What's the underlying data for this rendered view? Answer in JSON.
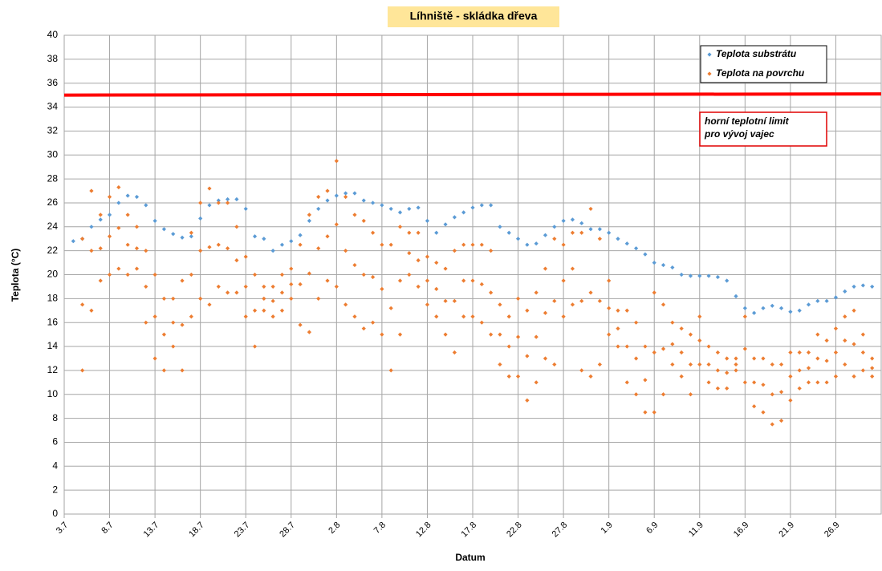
{
  "chart_data": {
    "type": "scatter",
    "title": "Líhniště - skládka dřeva",
    "x_label": "Datum",
    "y_label": "Teplota (°C)",
    "xlim": [
      0,
      90
    ],
    "ylim": [
      0,
      40
    ],
    "xticks": [
      {
        "value": 0,
        "label": "3.7"
      },
      {
        "value": 5,
        "label": "8.7"
      },
      {
        "value": 10,
        "label": "13.7"
      },
      {
        "value": 15,
        "label": "18.7"
      },
      {
        "value": 20,
        "label": "23.7"
      },
      {
        "value": 25,
        "label": "28.7"
      },
      {
        "value": 30,
        "label": "2.8"
      },
      {
        "value": 35,
        "label": "7.8"
      },
      {
        "value": 40,
        "label": "12.8"
      },
      {
        "value": 45,
        "label": "17.8"
      },
      {
        "value": 50,
        "label": "22.8"
      },
      {
        "value": 55,
        "label": "27.8"
      },
      {
        "value": 60,
        "label": "1.9"
      },
      {
        "value": 65,
        "label": "6.9"
      },
      {
        "value": 70,
        "label": "11.9"
      },
      {
        "value": 75,
        "label": "16.9"
      },
      {
        "value": 80,
        "label": "21.9"
      },
      {
        "value": 85,
        "label": "26.9"
      }
    ],
    "yticks": [
      0,
      2,
      4,
      6,
      8,
      10,
      12,
      14,
      16,
      18,
      20,
      22,
      24,
      26,
      28,
      30,
      32,
      34,
      36,
      38,
      40
    ],
    "grid": true,
    "legend": "top-right",
    "annotation": [
      "horní teplotní limit",
      "pro vývoj  vajec"
    ],
    "limit_line": {
      "color": "#ff0000",
      "x": [
        0,
        90
      ],
      "values": [
        35,
        35.1
      ]
    },
    "series": [
      {
        "name": "Teplota substrátu",
        "color": "#5b9bd5",
        "x": [
          1,
          2,
          3,
          4,
          5,
          6,
          7,
          8,
          9,
          10,
          11,
          12,
          13,
          14,
          15,
          16,
          17,
          18,
          19,
          20,
          21,
          22,
          23,
          24,
          25,
          26,
          27,
          28,
          29,
          30,
          31,
          32,
          33,
          34,
          35,
          36,
          37,
          38,
          39,
          40,
          41,
          42,
          43,
          44,
          45,
          46,
          47,
          48,
          49,
          50,
          51,
          52,
          53,
          54,
          55,
          56,
          57,
          58,
          59,
          60,
          61,
          62,
          63,
          64,
          65,
          66,
          67,
          68,
          69,
          70,
          71,
          72,
          73,
          74,
          75,
          76,
          77,
          78,
          79,
          80,
          81,
          82,
          83,
          84,
          85,
          86,
          87,
          88,
          89
        ],
        "values": [
          22.8,
          23,
          24,
          24.6,
          25,
          26,
          26.6,
          26.5,
          25.8,
          24.5,
          23.8,
          23.4,
          23.1,
          23.2,
          24.7,
          25.8,
          26.2,
          26.3,
          26.3,
          25.5,
          23.2,
          23,
          22,
          22.5,
          22.8,
          23.3,
          24.5,
          25.5,
          26.2,
          26.6,
          26.8,
          26.8,
          26.2,
          26,
          25.8,
          25.5,
          25.2,
          25.5,
          25.6,
          24.5,
          23.5,
          24.2,
          24.8,
          25.2,
          25.6,
          25.8,
          25.8,
          24,
          23.5,
          23,
          22.5,
          22.6,
          23.3,
          24,
          24.5,
          24.6,
          24.3,
          23.8,
          23.8,
          23.5,
          23,
          22.6,
          22.2,
          21.7,
          21,
          20.8,
          20.6,
          20,
          19.9,
          19.9,
          19.9,
          19.8,
          19.5,
          18.2,
          17.2,
          16.8,
          17.2,
          17.4,
          17.2,
          16.9,
          17,
          17.5,
          17.8,
          17.8,
          18.1,
          18.6,
          19,
          19.1,
          19
        ]
      },
      {
        "name": "Teplota na povrchu",
        "color": "#ed7d31",
        "x": [
          2,
          2,
          2,
          3,
          3,
          3,
          4,
          4,
          4,
          5,
          5,
          5,
          6,
          6,
          6,
          7,
          7,
          7,
          8,
          8,
          8,
          9,
          9,
          9,
          10,
          10,
          10,
          11,
          11,
          11,
          12,
          12,
          12,
          13,
          13,
          13,
          14,
          14,
          14,
          15,
          15,
          15,
          16,
          16,
          16,
          17,
          17,
          17,
          18,
          18,
          18,
          19,
          19,
          19,
          20,
          20,
          20,
          21,
          21,
          21,
          22,
          22,
          22,
          23,
          23,
          23,
          24,
          24,
          24,
          25,
          25,
          25,
          26,
          26,
          26,
          27,
          27,
          27,
          28,
          28,
          28,
          29,
          29,
          29,
          30,
          30,
          30,
          31,
          31,
          31,
          32,
          32,
          32,
          33,
          33,
          33,
          34,
          34,
          34,
          35,
          35,
          35,
          36,
          36,
          36,
          37,
          37,
          37,
          38,
          38,
          38,
          39,
          39,
          39,
          40,
          40,
          40,
          41,
          41,
          41,
          42,
          42,
          42,
          43,
          43,
          43,
          44,
          44,
          44,
          45,
          45,
          45,
          46,
          46,
          46,
          47,
          47,
          47,
          48,
          48,
          48,
          49,
          49,
          49,
          50,
          50,
          50,
          51,
          51,
          51,
          52,
          52,
          52,
          53,
          53,
          53,
          54,
          54,
          54,
          55,
          55,
          55,
          56,
          56,
          56,
          57,
          57,
          57,
          58,
          58,
          58,
          59,
          59,
          59,
          60,
          60,
          60,
          61,
          61,
          61,
          62,
          62,
          62,
          63,
          63,
          63,
          64,
          64,
          64,
          65,
          65,
          65,
          66,
          66,
          66,
          67,
          67,
          67,
          68,
          68,
          68,
          69,
          69,
          69,
          70,
          70,
          70,
          71,
          71,
          71,
          72,
          72,
          72,
          73,
          73,
          73,
          74,
          74,
          74,
          75,
          75,
          75,
          76,
          76,
          76,
          77,
          77,
          77,
          78,
          78,
          78,
          79,
          79,
          79,
          80,
          80,
          80,
          81,
          81,
          81,
          82,
          82,
          82,
          83,
          83,
          83,
          84,
          84,
          84,
          85,
          85,
          85,
          86,
          86,
          86,
          87,
          87,
          87,
          88,
          88,
          88,
          89,
          89,
          89
        ],
        "values": [
          12,
          17.5,
          23,
          17,
          22,
          27,
          19.5,
          22.2,
          25,
          20,
          23.2,
          26.5,
          20.5,
          23.9,
          27.3,
          20,
          22.5,
          25,
          20.5,
          22.2,
          24,
          16,
          19,
          22,
          13,
          16.5,
          20,
          12,
          15,
          18,
          14,
          16,
          18,
          12,
          15.8,
          19.5,
          16.5,
          20,
          23.5,
          18,
          22,
          26,
          17.5,
          22.3,
          27.2,
          19,
          22.5,
          26,
          18.5,
          22.2,
          26,
          18.5,
          21.2,
          24,
          16.5,
          19,
          21.5,
          14,
          17,
          20,
          17,
          18,
          19,
          16.5,
          17.8,
          19,
          17,
          18.5,
          20,
          18,
          19.2,
          20.5,
          15.8,
          19.2,
          22.5,
          15.2,
          20.1,
          25,
          18,
          22.2,
          26.5,
          19.5,
          23.2,
          27,
          19,
          24.2,
          29.5,
          17.5,
          22,
          26.5,
          16.5,
          20.8,
          25,
          15.5,
          20,
          24.5,
          16,
          19.8,
          23.5,
          15,
          18.8,
          22.5,
          12,
          17.2,
          22.5,
          15,
          19.5,
          24,
          20,
          21.8,
          23.5,
          19,
          21.2,
          23.5,
          17.5,
          19.5,
          21.5,
          16.5,
          18.8,
          21,
          15,
          17.8,
          20.5,
          13.5,
          17.8,
          22,
          16.5,
          19.5,
          22.5,
          16.5,
          19.5,
          22.5,
          16,
          19.2,
          22.5,
          15,
          18.5,
          22,
          12.5,
          15,
          17.5,
          11.5,
          14,
          16.5,
          11.5,
          14.8,
          18,
          9.5,
          13.2,
          17,
          11,
          14.8,
          18.5,
          13,
          16.8,
          20.5,
          12.5,
          17.8,
          23,
          16.5,
          19.5,
          22.5,
          17.5,
          20.5,
          23.5,
          12,
          17.8,
          23.5,
          11.5,
          18.5,
          25.5,
          12.5,
          17.8,
          23,
          15,
          17.2,
          19.5,
          14,
          15.5,
          17,
          11,
          14,
          17,
          10,
          13,
          16,
          8.5,
          11.2,
          14,
          8.5,
          13.5,
          18.5,
          10,
          13.8,
          17.5,
          12.5,
          14.2,
          16,
          11.5,
          13.5,
          15.5,
          10,
          12.5,
          15,
          12.5,
          14.5,
          16.5,
          11,
          12.5,
          14,
          10.5,
          12,
          13.5,
          10.5,
          11.8,
          13,
          12,
          12.5,
          13,
          11,
          13.8,
          16.5,
          9,
          11,
          13,
          8.5,
          10.8,
          13,
          7.5,
          10,
          12.5,
          7.8,
          10.2,
          12.5,
          9.5,
          11.5,
          13.5,
          10.5,
          12,
          13.5,
          11,
          12.2,
          13.5,
          11,
          13,
          15,
          11,
          12.8,
          14.5,
          11.5,
          13.5,
          15.5,
          12.5,
          14.5,
          16.5,
          11.5,
          14.2,
          17,
          12,
          13.5,
          15,
          11.5,
          12.2,
          13
        ]
      }
    ]
  }
}
